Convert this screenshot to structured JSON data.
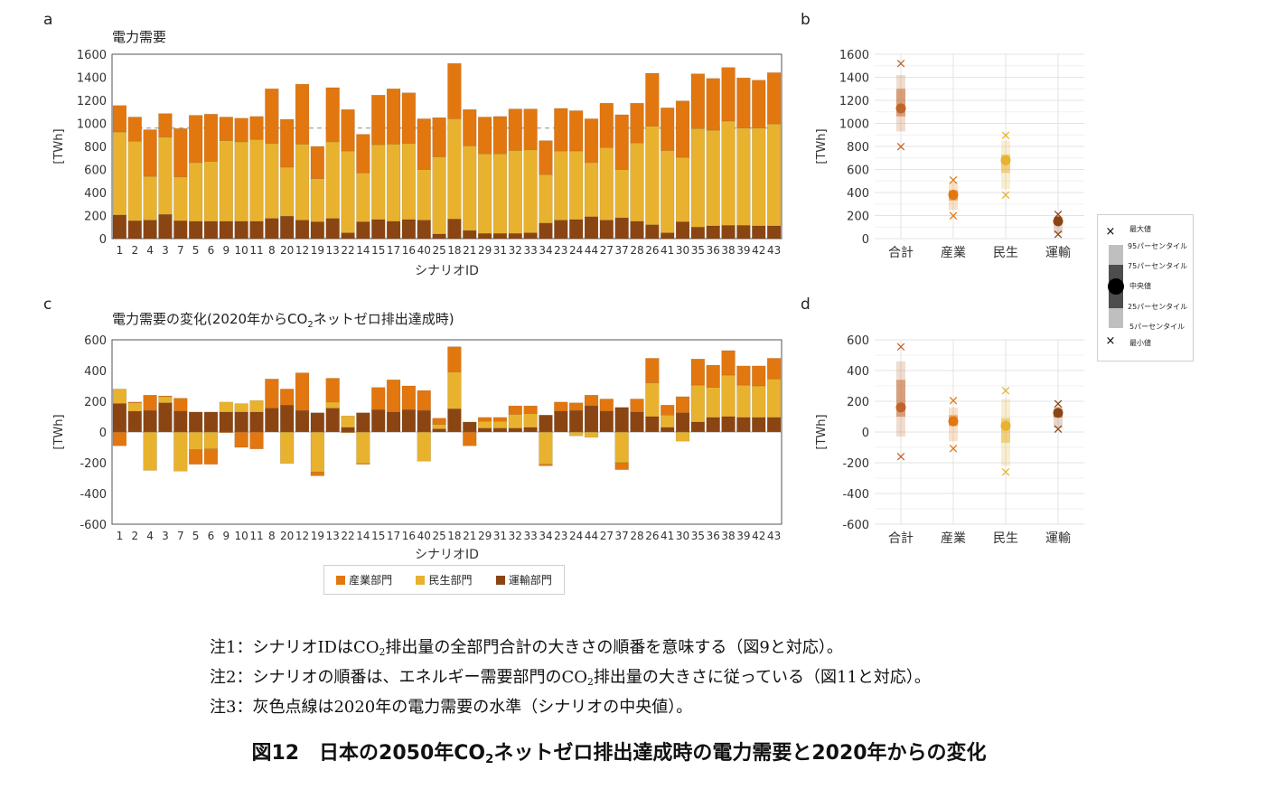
{
  "panel_letters": [
    "a",
    "b",
    "c",
    "d"
  ],
  "colors": {
    "industry": "#E2770F",
    "residential": "#E8B22F",
    "transport": "#8B4513",
    "dashed": "#B0B0B0"
  },
  "legend": {
    "items": [
      {
        "label": "産業部門",
        "color": "#E2770F"
      },
      {
        "label": "民生部門",
        "color": "#E8B22F"
      },
      {
        "label": "運輸部門",
        "color": "#8B4513"
      }
    ]
  },
  "dist_legend": {
    "max": "最大値",
    "p95": "95パーセンタイル",
    "p75": "75パーセンタイル",
    "median": "中央値",
    "p25": "25パーセンタイル",
    "p5": "5パーセンタイル",
    "min": "最小値"
  },
  "notes": {
    "note1_a": "注1：シナリオIDはCO",
    "note1_sub": "2",
    "note1_b": "排出量の全部門合計の大きさの順番を意味する（図9と対応）。",
    "note2_a": "注2：シナリオの順番は、エネルギー需要部門のCO",
    "note2_sub": "2",
    "note2_b": "排出量の大きさに従っている（図11と対応）。",
    "note3": "注3：灰色点線は2020年の電力需要の水準（シナリオの中央値）。"
  },
  "caption": {
    "a": "図12　日本の2050年CO",
    "sub": "2",
    "b": "ネットゼロ排出達成時の電力需要と2020年からの変化"
  },
  "chart_data": [
    {
      "panel": "a",
      "type": "bar",
      "stacked": true,
      "title": "電力需要",
      "xlabel": "シナリオID",
      "ylabel": "[TWh]",
      "ylim": [
        0,
        1600
      ],
      "yticks": [
        0,
        200,
        400,
        600,
        800,
        1000,
        1200,
        1400,
        1600
      ],
      "reference_line": 960,
      "categories": [
        "1",
        "2",
        "4",
        "3",
        "7",
        "5",
        "6",
        "9",
        "10",
        "11",
        "8",
        "20",
        "12",
        "19",
        "13",
        "22",
        "14",
        "15",
        "17",
        "16",
        "40",
        "25",
        "18",
        "21",
        "29",
        "31",
        "32",
        "33",
        "34",
        "23",
        "24",
        "44",
        "27",
        "37",
        "28",
        "26",
        "41",
        "30",
        "35",
        "36",
        "38",
        "39",
        "42",
        "43"
      ],
      "series": [
        {
          "name": "運輸部門",
          "values": [
            205,
            155,
            160,
            210,
            155,
            150,
            150,
            150,
            150,
            150,
            175,
            195,
            160,
            145,
            175,
            50,
            145,
            165,
            150,
            165,
            160,
            40,
            170,
            70,
            45,
            45,
            45,
            50,
            135,
            160,
            165,
            190,
            160,
            180,
            150,
            120,
            50,
            145,
            100,
            110,
            115,
            115,
            110,
            110
          ]
        },
        {
          "name": "民生部門",
          "values": [
            720,
            690,
            380,
            670,
            380,
            510,
            520,
            700,
            690,
            710,
            650,
            425,
            660,
            375,
            665,
            710,
            425,
            650,
            670,
            660,
            440,
            670,
            870,
            735,
            690,
            690,
            720,
            720,
            420,
            600,
            595,
            470,
            630,
            420,
            680,
            855,
            715,
            560,
            855,
            830,
            905,
            845,
            850,
            885
          ]
        },
        {
          "name": "産業部門",
          "values": [
            230,
            210,
            405,
            205,
            420,
            410,
            410,
            205,
            205,
            200,
            475,
            415,
            520,
            280,
            470,
            360,
            335,
            430,
            480,
            440,
            440,
            340,
            480,
            315,
            320,
            325,
            360,
            355,
            295,
            370,
            350,
            380,
            385,
            475,
            345,
            460,
            370,
            490,
            475,
            450,
            465,
            435,
            415,
            445
          ]
        }
      ]
    },
    {
      "panel": "b",
      "type": "box",
      "ylabel": "[TWh]",
      "ylim": [
        0,
        1600
      ],
      "yticks": [
        0,
        200,
        400,
        600,
        800,
        1000,
        1200,
        1400,
        1600
      ],
      "categories": [
        "合計",
        "産業",
        "民生",
        "運輸"
      ],
      "stats": [
        {
          "min": 800,
          "p5": 930,
          "p25": 1060,
          "median": 1130,
          "p75": 1300,
          "p95": 1420,
          "max": 1520
        },
        {
          "min": 200,
          "p5": 250,
          "p25": 330,
          "median": 380,
          "p75": 420,
          "p95": 490,
          "max": 510
        },
        {
          "min": 380,
          "p5": 430,
          "p25": 570,
          "median": 680,
          "p75": 730,
          "p95": 850,
          "max": 900
        },
        {
          "min": 40,
          "p5": 45,
          "p25": 130,
          "median": 150,
          "p75": 165,
          "p95": 190,
          "max": 210
        }
      ]
    },
    {
      "panel": "c",
      "type": "bar",
      "stacked": true,
      "title": "電力需要の変化(2020年からCO",
      "title_sub": "2",
      "title_tail": "ネットゼロ排出達成時)",
      "xlabel": "シナリオID",
      "ylabel": "[TWh]",
      "ylim": [
        -600,
        600
      ],
      "yticks": [
        -600,
        -400,
        -200,
        0,
        200,
        400,
        600
      ],
      "categories": [
        "1",
        "2",
        "4",
        "3",
        "7",
        "5",
        "6",
        "9",
        "10",
        "11",
        "8",
        "20",
        "12",
        "19",
        "13",
        "22",
        "14",
        "15",
        "17",
        "16",
        "40",
        "25",
        "18",
        "21",
        "29",
        "31",
        "32",
        "33",
        "34",
        "23",
        "24",
        "44",
        "27",
        "37",
        "28",
        "26",
        "41",
        "30",
        "35",
        "36",
        "38",
        "39",
        "42",
        "43"
      ],
      "series": [
        {
          "name": "運輸部門",
          "values": [
            185,
            135,
            140,
            190,
            135,
            130,
            130,
            130,
            130,
            130,
            155,
            175,
            140,
            125,
            155,
            30,
            125,
            145,
            130,
            145,
            140,
            20,
            150,
            65,
            25,
            25,
            25,
            30,
            110,
            135,
            140,
            170,
            135,
            160,
            130,
            100,
            30,
            125,
            65,
            95,
            100,
            95,
            95,
            95
          ]
        },
        {
          "name": "民生部門",
          "values": [
            95,
            55,
            -250,
            40,
            -255,
            -115,
            -110,
            65,
            55,
            75,
            0,
            -205,
            0,
            -260,
            40,
            75,
            -205,
            0,
            0,
            0,
            -190,
            30,
            240,
            0,
            45,
            45,
            90,
            90,
            -210,
            0,
            -25,
            -35,
            0,
            -200,
            0,
            220,
            80,
            -60,
            240,
            195,
            270,
            210,
            205,
            250
          ]
        },
        {
          "name": "産業部門",
          "values": [
            -90,
            5,
            100,
            5,
            85,
            -95,
            -100,
            -5,
            -100,
            -110,
            190,
            105,
            245,
            -25,
            155,
            -5,
            -5,
            145,
            210,
            155,
            130,
            40,
            165,
            -90,
            25,
            25,
            55,
            50,
            -10,
            60,
            50,
            70,
            80,
            -45,
            85,
            160,
            65,
            105,
            170,
            145,
            160,
            125,
            130,
            135
          ]
        }
      ]
    },
    {
      "panel": "d",
      "type": "box",
      "ylabel": "[TWh]",
      "ylim": [
        -600,
        600
      ],
      "yticks": [
        -600,
        -400,
        -200,
        0,
        200,
        400,
        600
      ],
      "categories": [
        "合計",
        "産業",
        "民生",
        "運輸"
      ],
      "stats": [
        {
          "min": -160,
          "p5": -30,
          "p25": 100,
          "median": 160,
          "p75": 340,
          "p95": 460,
          "max": 555
        },
        {
          "min": -105,
          "p5": -60,
          "p25": 40,
          "median": 70,
          "p75": 110,
          "p95": 160,
          "max": 205
        },
        {
          "min": -260,
          "p5": -220,
          "p25": -70,
          "median": 40,
          "p75": 90,
          "p95": 215,
          "max": 270
        },
        {
          "min": 20,
          "p5": 25,
          "p25": 95,
          "median": 125,
          "p75": 145,
          "p95": 165,
          "max": 185
        }
      ]
    }
  ]
}
